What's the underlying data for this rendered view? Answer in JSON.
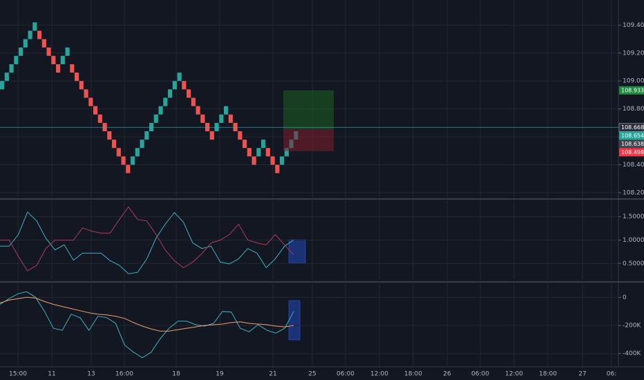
{
  "chart_data": [
    {
      "type": "renko",
      "open": [
        108.94,
        109.0,
        109.06,
        109.12,
        109.18,
        109.24,
        109.3,
        109.36,
        109.36,
        109.3,
        109.24,
        109.18,
        109.12,
        109.12,
        109.18,
        109.12,
        109.06,
        109.0,
        108.94,
        108.88,
        108.82,
        108.76,
        108.7,
        108.64,
        108.58,
        108.52,
        108.46,
        108.4,
        108.4,
        108.46,
        108.52,
        108.58,
        108.64,
        108.7,
        108.76,
        108.82,
        108.88,
        108.94,
        109.0,
        109.0,
        108.94,
        108.88,
        108.82,
        108.76,
        108.7,
        108.64,
        108.64,
        108.7,
        108.76,
        108.76,
        108.7,
        108.64,
        108.58,
        108.52,
        108.46,
        108.46,
        108.52,
        108.52,
        108.46,
        108.4,
        108.4,
        108.46,
        108.52,
        108.58
      ],
      "close": [
        109.0,
        109.06,
        109.12,
        109.18,
        109.24,
        109.3,
        109.36,
        109.42,
        109.3,
        109.24,
        109.18,
        109.12,
        109.06,
        109.18,
        109.24,
        109.06,
        109.0,
        108.94,
        108.88,
        108.82,
        108.76,
        108.7,
        108.64,
        108.58,
        108.52,
        108.46,
        108.4,
        108.34,
        108.46,
        108.52,
        108.58,
        108.64,
        108.7,
        108.76,
        108.82,
        108.88,
        108.94,
        109.0,
        109.06,
        108.94,
        108.88,
        108.82,
        108.76,
        108.7,
        108.64,
        108.58,
        108.7,
        108.76,
        108.82,
        108.7,
        108.64,
        108.58,
        108.52,
        108.46,
        108.4,
        108.52,
        108.58,
        108.46,
        108.4,
        108.34,
        108.46,
        108.52,
        108.58,
        108.64
      ],
      "up_color": "#26a69a",
      "down_color": "#ef5350",
      "ylim": [
        108.16,
        109.58
      ],
      "yticks": [
        {
          "value": 108.2,
          "label": "108.200"
        },
        {
          "value": 108.4,
          "label": "108.400"
        },
        {
          "value": 108.6,
          "label": "108.600"
        },
        {
          "value": 108.8,
          "label": "108.800"
        },
        {
          "value": 109.0,
          "label": "109.000"
        },
        {
          "value": 109.2,
          "label": "109.200"
        },
        {
          "value": 109.4,
          "label": "109.400"
        }
      ],
      "price_labels": [
        {
          "value": 108.933,
          "label": "108.933",
          "color": "#1e8c3f"
        },
        {
          "value": 108.668,
          "label": "108.668",
          "color": "#2a2e39"
        },
        {
          "value": 108.654,
          "label": "108.654",
          "color": "#26a69a"
        },
        {
          "value": 108.638,
          "label": "108.638",
          "color": "#434651"
        },
        {
          "value": 108.498,
          "label": "108.498",
          "color": "#f23645"
        }
      ]
    },
    {
      "type": "line",
      "series": [
        {
          "color": "#3bb3c3",
          "values": [
            0.87,
            0.87,
            1.12,
            1.6,
            1.41,
            1.04,
            0.79,
            0.9,
            0.57,
            0.72,
            0.72,
            0.72,
            0.56,
            0.46,
            0.28,
            0.31,
            0.6,
            1.04,
            1.34,
            1.59,
            1.38,
            0.94,
            0.82,
            0.87,
            0.53,
            0.49,
            0.6,
            0.82,
            0.72,
            0.41,
            0.6,
            0.87,
            1.0
          ]
        },
        {
          "color": "#b03a5b",
          "values": [
            1.0,
            1.0,
            0.65,
            0.34,
            0.46,
            0.82,
            1.0,
            1.0,
            1.0,
            1.26,
            1.19,
            1.15,
            1.15,
            1.44,
            1.71,
            1.44,
            1.41,
            1.12,
            0.79,
            0.56,
            0.41,
            0.53,
            0.71,
            0.94,
            1.0,
            1.12,
            1.34,
            1.0,
            0.94,
            0.9,
            1.12,
            0.9,
            0.68
          ]
        }
      ],
      "ylim": [
        0.15,
        1.85
      ],
      "yticks": [
        {
          "value": 0.5,
          "label": "0.5000"
        },
        {
          "value": 1.0,
          "label": "1.0000"
        },
        {
          "value": 1.5,
          "label": "1.5000"
        }
      ]
    },
    {
      "type": "line",
      "series": [
        {
          "color": "#3bb3c3",
          "values": [
            -50000,
            -10000,
            25000,
            40000,
            0,
            -100000,
            -220000,
            -235000,
            -120000,
            -145000,
            -235000,
            -135000,
            -145000,
            -185000,
            -340000,
            -390000,
            -430000,
            -390000,
            -295000,
            -220000,
            -170000,
            -170000,
            -195000,
            -205000,
            -185000,
            -100000,
            -105000,
            -220000,
            -245000,
            -195000,
            -235000,
            -255000,
            -220000,
            -100000
          ]
        },
        {
          "color": "#f0a070",
          "values": [
            -40000,
            -20000,
            -10000,
            0,
            -5000,
            -30000,
            -50000,
            -65000,
            -80000,
            -95000,
            -110000,
            -120000,
            -125000,
            -135000,
            -150000,
            -180000,
            -205000,
            -225000,
            -240000,
            -240000,
            -230000,
            -220000,
            -210000,
            -200000,
            -195000,
            -190000,
            -180000,
            -175000,
            -185000,
            -190000,
            -195000,
            -205000,
            -210000,
            -200000
          ]
        }
      ],
      "ylim": [
        -490000,
        100000
      ],
      "yticks": [
        {
          "value": 0,
          "label": "0"
        },
        {
          "value": -200000,
          "label": "-200K"
        },
        {
          "value": -400000,
          "label": "-400K"
        }
      ]
    }
  ],
  "time_axis": [
    "15:00",
    "11",
    "13",
    "16:00",
    "18",
    "19",
    "21",
    "25",
    "06:00",
    "12:00",
    "18:00",
    "26",
    "06:00",
    "12:00",
    "18:00",
    "27",
    "06:"
  ]
}
